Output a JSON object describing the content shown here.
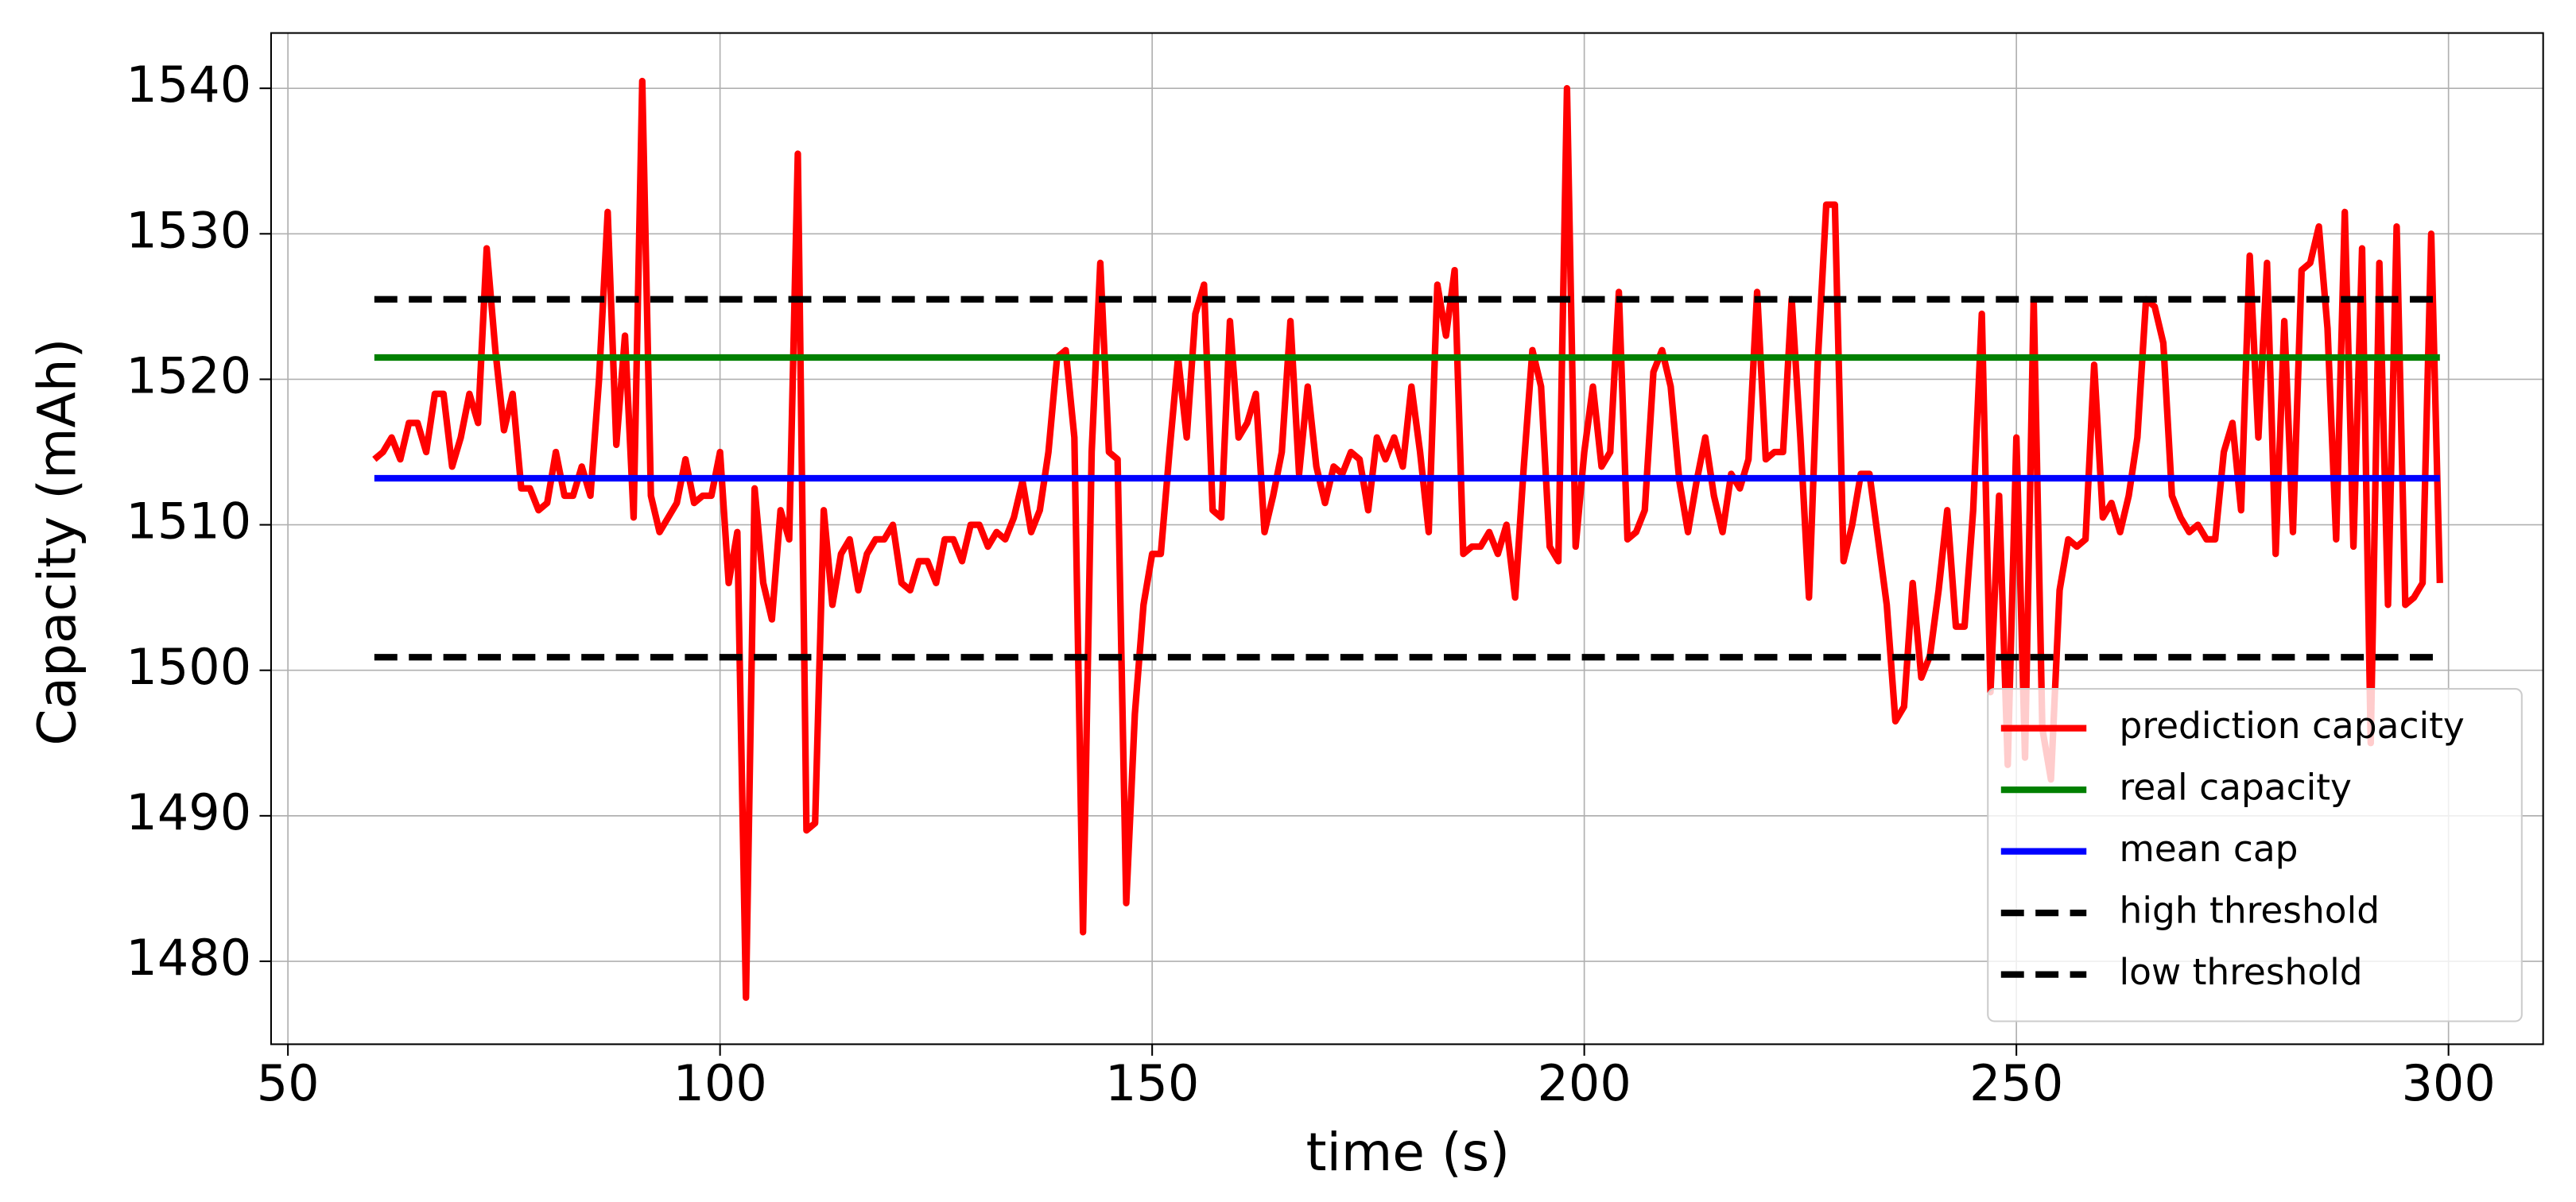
{
  "chart_data": {
    "type": "line",
    "xlabel": "time (s)",
    "ylabel": "Capacity (mAh)",
    "xlim": [
      48.05,
      310.95
    ],
    "ylim": [
      1474.3,
      1543.8
    ],
    "xticks": [
      50,
      100,
      150,
      200,
      250,
      300
    ],
    "yticks": [
      1480,
      1490,
      1500,
      1510,
      1520,
      1530,
      1540
    ],
    "grid": true,
    "legend_position": "lower right",
    "series": [
      {
        "name": "prediction capacity",
        "color": "#ff0000",
        "linestyle": "solid",
        "x": [
          60,
          61,
          62,
          63,
          64,
          65,
          66,
          67,
          68,
          69,
          70,
          71,
          72,
          73,
          74,
          75,
          76,
          77,
          78,
          79,
          80,
          81,
          82,
          83,
          84,
          85,
          86,
          87,
          88,
          89,
          90,
          91,
          92,
          93,
          94,
          95,
          96,
          97,
          98,
          99,
          100,
          101,
          102,
          103,
          104,
          105,
          106,
          107,
          108,
          109,
          110,
          111,
          112,
          113,
          114,
          115,
          116,
          117,
          118,
          119,
          120,
          121,
          122,
          123,
          124,
          125,
          126,
          127,
          128,
          129,
          130,
          131,
          132,
          133,
          134,
          135,
          136,
          137,
          138,
          139,
          140,
          141,
          142,
          143,
          144,
          145,
          146,
          147,
          148,
          149,
          150,
          151,
          152,
          153,
          154,
          155,
          156,
          157,
          158,
          159,
          160,
          161,
          162,
          163,
          164,
          165,
          166,
          167,
          168,
          169,
          170,
          171,
          172,
          173,
          174,
          175,
          176,
          177,
          178,
          179,
          180,
          181,
          182,
          183,
          184,
          185,
          186,
          187,
          188,
          189,
          190,
          191,
          192,
          193,
          194,
          195,
          196,
          197,
          198,
          199,
          200,
          201,
          202,
          203,
          204,
          205,
          206,
          207,
          208,
          209,
          210,
          211,
          212,
          213,
          214,
          215,
          216,
          217,
          218,
          219,
          220,
          221,
          222,
          223,
          224,
          225,
          226,
          227,
          228,
          229,
          230,
          231,
          232,
          233,
          234,
          235,
          236,
          237,
          238,
          239,
          240,
          241,
          242,
          243,
          244,
          245,
          246,
          247,
          248,
          249,
          250,
          251,
          252,
          253,
          254,
          255,
          256,
          257,
          258,
          259,
          260,
          261,
          262,
          263,
          264,
          265,
          266,
          267,
          268,
          269,
          270,
          271,
          272,
          273,
          274,
          275,
          276,
          277,
          278,
          279,
          280,
          281,
          282,
          283,
          284,
          285,
          286,
          287,
          288,
          289,
          290,
          291,
          292,
          293,
          294,
          295,
          296,
          297,
          298,
          299
        ],
        "values": [
          1514.5,
          1515,
          1516,
          1514.5,
          1517,
          1517,
          1515,
          1519,
          1519,
          1514,
          1516,
          1519,
          1517,
          1529,
          1522,
          1516.5,
          1519,
          1512.5,
          1512.5,
          1511,
          1511.5,
          1515,
          1512,
          1512,
          1514,
          1512,
          1520,
          1531.5,
          1515.5,
          1523,
          1510.5,
          1540.5,
          1512,
          1509.5,
          1510.5,
          1511.5,
          1514.5,
          1511.5,
          1512,
          1512,
          1515,
          1506,
          1509.5,
          1477.5,
          1512.5,
          1506,
          1503.5,
          1511,
          1509,
          1535.5,
          1489,
          1489.5,
          1511,
          1504.5,
          1508,
          1509,
          1505.5,
          1508,
          1509,
          1509,
          1510,
          1506,
          1505.5,
          1507.5,
          1507.5,
          1506,
          1509,
          1509,
          1507.5,
          1510,
          1510,
          1508.5,
          1509.5,
          1509,
          1510.5,
          1513,
          1509.5,
          1511,
          1515,
          1521.5,
          1522,
          1516,
          1482,
          1515,
          1528,
          1515,
          1514.5,
          1484,
          1497,
          1504.5,
          1508,
          1508,
          1515,
          1521.5,
          1516,
          1524.5,
          1526.5,
          1511,
          1510.5,
          1524,
          1516,
          1517,
          1519,
          1509.5,
          1512,
          1515,
          1524,
          1513.5,
          1519.5,
          1514,
          1511.5,
          1514,
          1513.5,
          1515,
          1514.5,
          1511,
          1516,
          1514.5,
          1516,
          1514,
          1519.5,
          1515,
          1509.5,
          1526.5,
          1523,
          1527.5,
          1508,
          1508.5,
          1508.5,
          1509.5,
          1508,
          1510,
          1505,
          1514,
          1522,
          1519.5,
          1508.5,
          1507.5,
          1540,
          1508.5,
          1515,
          1519.5,
          1514,
          1515,
          1526,
          1509,
          1509.5,
          1511,
          1520.5,
          1522,
          1519.5,
          1513,
          1509.5,
          1513,
          1516,
          1512,
          1509.5,
          1513.5,
          1512.5,
          1514.5,
          1526,
          1514.5,
          1515,
          1515,
          1525.5,
          1516,
          1505,
          1521,
          1532,
          1532,
          1507.5,
          1510,
          1513.5,
          1513.5,
          1509,
          1504.5,
          1496.5,
          1497.5,
          1506,
          1499.5,
          1501,
          1505.5,
          1511,
          1503,
          1503,
          1511,
          1524.5,
          1498.5,
          1512,
          1493.5,
          1516,
          1494,
          1525.5,
          1496,
          1492.5,
          1505.5,
          1509,
          1508.5,
          1509,
          1521,
          1510.5,
          1511.5,
          1509.5,
          1512,
          1516,
          1525.5,
          1525,
          1522.5,
          1512,
          1510.5,
          1509.5,
          1510,
          1509,
          1509,
          1515,
          1517,
          1511,
          1528.5,
          1516,
          1528,
          1508,
          1524,
          1509.5,
          1527.5,
          1528,
          1530.5,
          1523.5,
          1509,
          1531.5,
          1508.5,
          1529,
          1495,
          1528,
          1504.5,
          1530.5,
          1504.5,
          1505,
          1506,
          1530,
          1506
        ]
      },
      {
        "name": "real capacity",
        "color": "#008000",
        "linestyle": "solid",
        "x": [
          60,
          299
        ],
        "values": [
          1521.5,
          1521.5
        ]
      },
      {
        "name": "mean cap",
        "color": "#0000ff",
        "linestyle": "solid",
        "x": [
          60,
          299
        ],
        "values": [
          1513.2,
          1513.2
        ]
      },
      {
        "name": "high threshold",
        "color": "#000000",
        "linestyle": "dashed",
        "x": [
          60,
          299
        ],
        "values": [
          1525.5,
          1525.5
        ]
      },
      {
        "name": "low threshold",
        "color": "#000000",
        "linestyle": "dashed",
        "x": [
          60,
          299
        ],
        "values": [
          1500.9,
          1500.9
        ]
      }
    ]
  }
}
